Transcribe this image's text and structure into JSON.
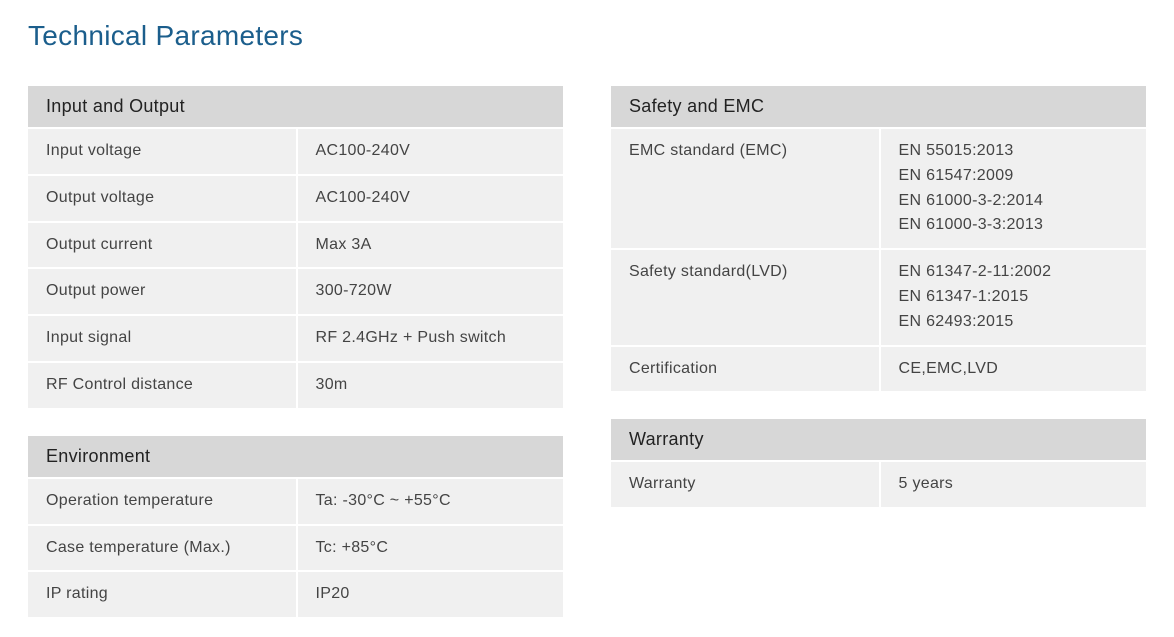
{
  "title": "Technical Parameters",
  "io": {
    "header": "Input and Output",
    "rows": [
      {
        "label": "Input voltage",
        "value": "AC100-240V"
      },
      {
        "label": "Output voltage",
        "value": "AC100-240V"
      },
      {
        "label": "Output current",
        "value": "Max 3A"
      },
      {
        "label": "Output power",
        "value": "300-720W"
      },
      {
        "label": "Input signal",
        "value": "RF 2.4GHz + Push switch"
      },
      {
        "label": "RF Control distance",
        "value": "30m"
      }
    ]
  },
  "env": {
    "header": "Environment",
    "rows": [
      {
        "label": "Operation temperature",
        "value": "Ta: -30°C ~ +55°C"
      },
      {
        "label": "Case temperature (Max.)",
        "value": "Tc: +85°C"
      },
      {
        "label": "IP rating",
        "value": "IP20"
      }
    ]
  },
  "safety": {
    "header": "Safety and EMC",
    "rows": [
      {
        "label": "EMC standard (EMC)",
        "value": "EN 55015:2013\nEN 61547:2009\nEN 61000-3-2:2014\nEN 61000-3-3:2013"
      },
      {
        "label": "Safety standard(LVD)",
        "value": "EN 61347-2-11:2002\nEN 61347-1:2015\nEN 62493:2015"
      },
      {
        "label": "Certification",
        "value": "CE,EMC,LVD"
      }
    ]
  },
  "warranty": {
    "header": "Warranty",
    "rows": [
      {
        "label": "Warranty",
        "value": "5 years"
      }
    ]
  },
  "style": {
    "title_color": "#1b5e8c",
    "header_bg": "#d7d7d7",
    "cell_bg": "#f0f0f0",
    "gap_color": "#ffffff",
    "text_color": "#333333",
    "title_fontsize": 28,
    "header_fontsize": 18,
    "cell_fontsize": 16
  }
}
